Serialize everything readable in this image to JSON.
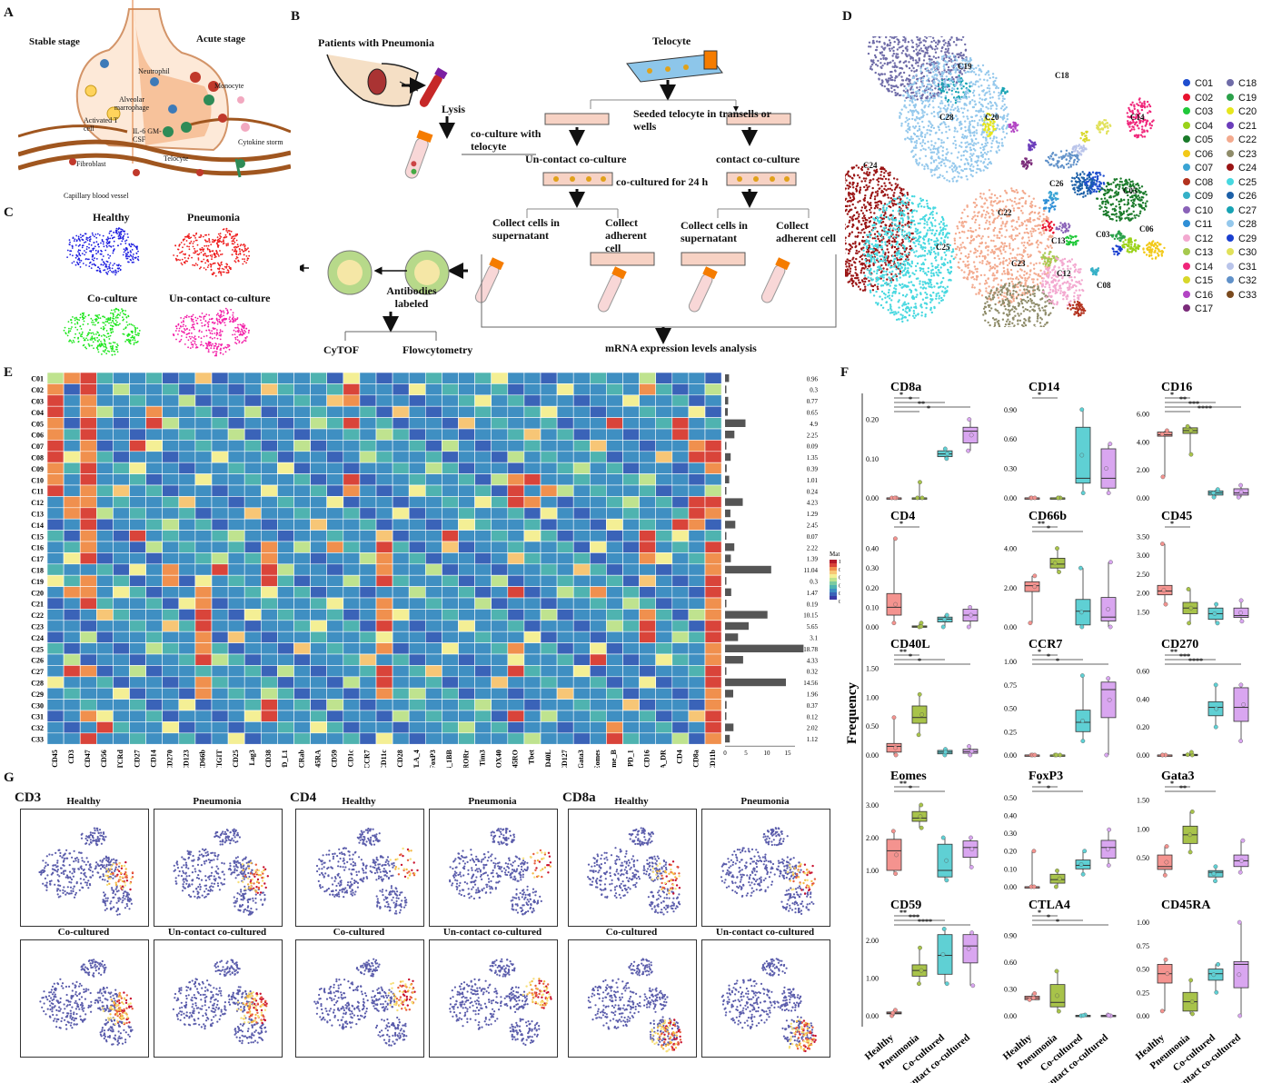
{
  "panels": {
    "a": "A",
    "b": "B",
    "c": "C",
    "d": "D",
    "e": "E",
    "f": "F",
    "g": "G"
  },
  "panelA": {
    "stable": "Stable stage",
    "acute": "Acute stage",
    "neutrophil": "Neutrophil",
    "alveolar": "Alveolar marrophage",
    "monocyte": "Monocyte",
    "activated": "Activated T cell",
    "il6": "IL-6 GM-CSF",
    "cytokine": "Cytokine storm",
    "fibroblast": "Fibroblast",
    "telocyte": "Telocyte",
    "capillary": "Capillary blood vessel",
    "colors": {
      "vessel": "#a0561f",
      "wall": "#f2c39c",
      "cell_green": "#2e8b57",
      "cell_red": "#c0392b"
    }
  },
  "panelB": {
    "patients": "Patients with   Pneumonia",
    "telocyte": "Telocyte",
    "lysis": "Lysis",
    "coculture": "co-culture with telocyte",
    "seeded": "Seeded telocyte in transells or wells",
    "uncontact": "Un-contact co-culture",
    "contact": "contact co-culture",
    "cocultured24": "co-cultured for 24 h",
    "collect1": "Collect cells in supernatant",
    "collect2": "Collect adherent cell",
    "collect3": "Collect cells in supernatant",
    "collect4": "Collect adherent cell",
    "antibodies": "Antibodies labeled",
    "cytof": "CyTOF",
    "flow": "Flowcytometry",
    "mrna": "mRNA expression levels analysis"
  },
  "panelC": {
    "labels": [
      "Healthy",
      "Pneumonia",
      "Co-culture",
      "Un-contact co-culture"
    ],
    "colors": [
      "#1f1fe0",
      "#ee1c1c",
      "#1ee61e",
      "#f21ba6"
    ]
  },
  "panelD": {
    "clusters": [
      "C01",
      "C02",
      "C03",
      "C04",
      "C05",
      "C06",
      "C07",
      "C08",
      "C09",
      "C10",
      "C11",
      "C12",
      "C13",
      "C14",
      "C15",
      "C16",
      "C17",
      "C18",
      "C19",
      "C20",
      "C21",
      "C22",
      "C23",
      "C24",
      "C25",
      "C26",
      "C27",
      "C28",
      "C29",
      "C30",
      "C31",
      "C32",
      "C33"
    ],
    "colors": [
      "#1f4ecf",
      "#e8122e",
      "#20c83a",
      "#9ad219",
      "#1a7a2a",
      "#f2c919",
      "#3aa4d4",
      "#b3321e",
      "#35b0c7",
      "#8a62b8",
      "#2f8fd6",
      "#f3a9d0",
      "#a6c94e",
      "#f0257a",
      "#d8d72a",
      "#b344c4",
      "#7b2c7a",
      "#6f6ca8",
      "#2ba14a",
      "#e6e61e",
      "#6b3dbb",
      "#f3aa8e",
      "#8f8c6a",
      "#9a1414",
      "#47d8e0",
      "#1c60a8",
      "#18a3b4",
      "#94c8ec",
      "#1a3fd0",
      "#e1e15a",
      "#b9c4ea",
      "#6091c9",
      "#7a4a1e"
    ]
  },
  "panelE": {
    "rows": [
      "C01",
      "C02",
      "C03",
      "C04",
      "C05",
      "C06",
      "C07",
      "C08",
      "C09",
      "C10",
      "C11",
      "C12",
      "C13",
      "C14",
      "C15",
      "C16",
      "C17",
      "C18",
      "C19",
      "C20",
      "C21",
      "C22",
      "C23",
      "C24",
      "C25",
      "C26",
      "C27",
      "C28",
      "C29",
      "C30",
      "C31",
      "C32",
      "C33"
    ],
    "cols": [
      "CD45",
      "CD3",
      "CD47",
      "CD56",
      "CD19_TCRd",
      "CD27",
      "CD14",
      "CD270",
      "CD123",
      "CD66b",
      "TIGIT",
      "CD25",
      "Lag3",
      "CD38",
      "PD_L1",
      "TCRab",
      "CD45RA",
      "CD59",
      "CD1c",
      "CD197_CCR7",
      "CD11c",
      "CD28",
      "CTLA_4",
      "FoxP3",
      "CD137_4_1BB",
      "RORr",
      "Tim3",
      "OX40",
      "CD45RO",
      "Tbet",
      "CD154_CD40L",
      "IL_7Ra_CD127",
      "Gata3",
      "Eomes",
      "Granzyme_B",
      "PD_1",
      "CD16",
      "HLA_DR",
      "CD4",
      "CD8a",
      "CD11b"
    ],
    "pct": [
      "0.96",
      "0.3",
      "0.77",
      "0.65",
      "4.9",
      "2.25",
      "0.09",
      "1.35",
      "0.39",
      "1.01",
      "0.24",
      "4.23",
      "1.29",
      "2.45",
      "0.07",
      "2.22",
      "1.39",
      "11.04",
      "0.3",
      "1.47",
      "0.19",
      "10.15",
      "5.65",
      "3.1",
      "18.78",
      "4.33",
      "0.32",
      "14.56",
      "1.96",
      "0.37",
      "0.12",
      "2.02",
      "1.12"
    ],
    "bar_ticks": [
      "0",
      "5",
      "10",
      "15"
    ],
    "legend_title": "Mat",
    "legend_ticks": [
      "1",
      "0.8",
      "0.6",
      "0.4",
      "0.2",
      "0"
    ]
  },
  "panelF": {
    "ylabel": "Frequency",
    "groups": [
      "Healthy",
      "Pneumonia",
      "Co-cultured",
      "Un-contact co-cultured"
    ],
    "colors": [
      "#f4938f",
      "#a8c34a",
      "#5fd0d4",
      "#d9a6f0"
    ],
    "plots": [
      {
        "name": "CD8a",
        "ticks": [
          "0.00",
          "0.10",
          "0.20"
        ],
        "range": [
          0,
          0.25
        ],
        "boxes": [
          [
            0,
            0,
            0,
            0,
            0
          ],
          [
            0,
            0,
            0,
            0,
            0.04
          ],
          [
            0.1,
            0.105,
            0.112,
            0.12,
            0.125
          ],
          [
            0.12,
            0.14,
            0.17,
            0.18,
            0.2
          ]
        ],
        "stars": [
          "*",
          "*",
          "**",
          "*"
        ]
      },
      {
        "name": "CD14",
        "ticks": [
          "0.00",
          "0.30",
          "0.60",
          "0.90"
        ],
        "range": [
          0,
          1.0
        ],
        "boxes": [
          [
            0,
            0,
            0,
            0,
            0
          ],
          [
            0,
            0,
            0,
            0,
            0
          ],
          [
            0.05,
            0.15,
            0.2,
            0.72,
            0.9
          ],
          [
            0.05,
            0.1,
            0.2,
            0.5,
            0.55
          ]
        ],
        "stars": [
          "*"
        ]
      },
      {
        "name": "CD16",
        "ticks": [
          "0.00",
          "2.00",
          "4.00",
          "6.00"
        ],
        "range": [
          0,
          7
        ],
        "boxes": [
          [
            1.5,
            4.4,
            4.5,
            4.7,
            4.8
          ],
          [
            3.1,
            4.6,
            4.8,
            5.0,
            5.1
          ],
          [
            0.05,
            0.2,
            0.35,
            0.5,
            0.6
          ],
          [
            0.05,
            0.2,
            0.35,
            0.65,
            0.9
          ]
        ],
        "stars": [
          "*",
          "**",
          "***",
          "****"
        ]
      },
      {
        "name": "CD4",
        "ticks": [
          "0.00",
          "0.10",
          "0.20",
          "0.30",
          "0.40"
        ],
        "range": [
          0,
          0.5
        ],
        "boxes": [
          [
            0.02,
            0.06,
            0.1,
            0.17,
            0.45
          ],
          [
            0,
            0,
            0,
            0.005,
            0.02
          ],
          [
            0,
            0.025,
            0.04,
            0.05,
            0.06
          ],
          [
            0,
            0.03,
            0.06,
            0.09,
            0.1
          ]
        ],
        "stars": [
          "*"
        ]
      },
      {
        "name": "CD66b",
        "ticks": [
          "0.00",
          "2.00",
          "4.00"
        ],
        "range": [
          0,
          5
        ],
        "boxes": [
          [
            0.2,
            1.8,
            2.1,
            2.3,
            2.6
          ],
          [
            2.8,
            3.0,
            3.2,
            3.5,
            4.0
          ],
          [
            0,
            0.1,
            0.8,
            1.4,
            3.0
          ],
          [
            0,
            0.3,
            0.5,
            1.5,
            3.3
          ]
        ],
        "stars": [
          "**",
          "*"
        ]
      },
      {
        "name": "CD45",
        "ticks": [
          "1.50",
          "2.00",
          "2.50",
          "3.00",
          "3.50"
        ],
        "range": [
          1.1,
          3.7
        ],
        "boxes": [
          [
            1.7,
            1.95,
            2.05,
            2.2,
            3.3
          ],
          [
            1.2,
            1.45,
            1.6,
            1.75,
            2.1
          ],
          [
            1.2,
            1.3,
            1.45,
            1.6,
            1.7
          ],
          [
            1.25,
            1.35,
            1.4,
            1.6,
            1.8
          ]
        ],
        "stars": [
          "*"
        ]
      },
      {
        "name": "CD40L",
        "ticks": [
          "0.00",
          "0.50",
          "1.00",
          "1.50"
        ],
        "range": [
          0,
          1.7
        ],
        "boxes": [
          [
            0,
            0.05,
            0.15,
            0.2,
            0.65
          ],
          [
            0.35,
            0.55,
            0.65,
            0.85,
            1.05
          ],
          [
            0,
            0.02,
            0.05,
            0.08,
            0.1
          ],
          [
            0,
            0.03,
            0.06,
            0.1,
            0.15
          ]
        ],
        "stars": [
          "**",
          "*",
          "*"
        ]
      },
      {
        "name": "CCR7",
        "ticks": [
          "0.00",
          "0.25",
          "0.50",
          "0.75",
          "1.00"
        ],
        "range": [
          0,
          1.05
        ],
        "boxes": [
          [
            0,
            0,
            0,
            0,
            0
          ],
          [
            0,
            0,
            0,
            0,
            0
          ],
          [
            0.15,
            0.25,
            0.35,
            0.48,
            0.85
          ],
          [
            0.0,
            0.4,
            0.7,
            0.78,
            0.82
          ]
        ],
        "stars": [
          "*",
          "*",
          "*"
        ]
      },
      {
        "name": "CD270",
        "ticks": [
          "0.00",
          "0.20",
          "0.40",
          "0.60"
        ],
        "range": [
          0,
          0.7
        ],
        "boxes": [
          [
            0,
            0,
            0,
            0,
            0
          ],
          [
            0,
            0,
            0,
            0.005,
            0.02
          ],
          [
            0.2,
            0.28,
            0.34,
            0.38,
            0.5
          ],
          [
            0.1,
            0.24,
            0.34,
            0.48,
            0.5
          ]
        ],
        "stars": [
          "**",
          "***",
          "****"
        ]
      },
      {
        "name": "Eomes",
        "ticks": [
          "1.00",
          "2.00",
          "3.00"
        ],
        "range": [
          0.5,
          3.5
        ],
        "boxes": [
          [
            0.9,
            1.0,
            1.6,
            1.95,
            2.2
          ],
          [
            2.3,
            2.5,
            2.6,
            2.8,
            3.0
          ],
          [
            0.7,
            0.8,
            1.0,
            1.8,
            2.0
          ],
          [
            1.1,
            1.4,
            1.7,
            1.9,
            2.0
          ]
        ],
        "stars": [
          "**",
          "*"
        ]
      },
      {
        "name": "FoxP3",
        "ticks": [
          "0.00",
          "0.10",
          "0.20",
          "0.30",
          "0.40",
          "0.50"
        ],
        "range": [
          0,
          0.55
        ],
        "boxes": [
          [
            0,
            0,
            0,
            0,
            0.2
          ],
          [
            0,
            0.02,
            0.04,
            0.07,
            0.09
          ],
          [
            0.07,
            0.1,
            0.12,
            0.15,
            0.2
          ],
          [
            0.12,
            0.16,
            0.22,
            0.26,
            0.32
          ]
        ],
        "stars": [
          "*",
          "*"
        ]
      },
      {
        "name": "Gata3",
        "ticks": [
          "0.50",
          "1.00",
          "1.50"
        ],
        "range": [
          0,
          1.7
        ],
        "boxes": [
          [
            0.2,
            0.3,
            0.35,
            0.55,
            0.7
          ],
          [
            0.6,
            0.75,
            0.9,
            1.05,
            1.3
          ],
          [
            0.1,
            0.17,
            0.25,
            0.28,
            0.35
          ],
          [
            0.25,
            0.35,
            0.45,
            0.55,
            0.8
          ]
        ],
        "stars": [
          "*",
          "**"
        ]
      },
      {
        "name": "CD59",
        "ticks": [
          "0.00",
          "1.00",
          "2.00"
        ],
        "range": [
          0,
          2.6
        ],
        "boxes": [
          [
            0,
            0.05,
            0.07,
            0.1,
            0.15
          ],
          [
            0.85,
            1.05,
            1.2,
            1.35,
            1.8
          ],
          [
            0.85,
            1.1,
            1.6,
            2.15,
            2.3
          ],
          [
            0.8,
            1.4,
            1.85,
            2.15,
            2.2
          ]
        ],
        "stars": [
          "**",
          "***",
          "****"
        ]
      },
      {
        "name": "CTLA4",
        "ticks": [
          "0.00",
          "0.30",
          "0.60",
          "0.90"
        ],
        "range": [
          0,
          1.1
        ],
        "boxes": [
          [
            0.18,
            0.18,
            0.2,
            0.22,
            0.25
          ],
          [
            0.05,
            0.1,
            0.15,
            0.35,
            0.5
          ],
          [
            0,
            0,
            0,
            0.005,
            0.01
          ],
          [
            0,
            0,
            0,
            0.005,
            0.01
          ]
        ],
        "stars": [
          "*",
          "*",
          "*"
        ]
      },
      {
        "name": "CD45RA",
        "ticks": [
          "0.00",
          "0.25",
          "0.50",
          "0.75",
          "1.00"
        ],
        "range": [
          0,
          1.05
        ],
        "boxes": [
          [
            0.05,
            0.35,
            0.45,
            0.55,
            0.6
          ],
          [
            0.02,
            0.05,
            0.15,
            0.25,
            0.38
          ],
          [
            0.25,
            0.38,
            0.45,
            0.5,
            0.55
          ],
          [
            0.0,
            0.3,
            0.55,
            0.58,
            1.0
          ]
        ],
        "stars": []
      }
    ]
  },
  "panelG": {
    "markers": [
      "CD3",
      "CD4",
      "CD8a"
    ],
    "conds": [
      "Healthy",
      "Pneumonia",
      "Co-cultured",
      "Un-contact co-cultured"
    ]
  }
}
